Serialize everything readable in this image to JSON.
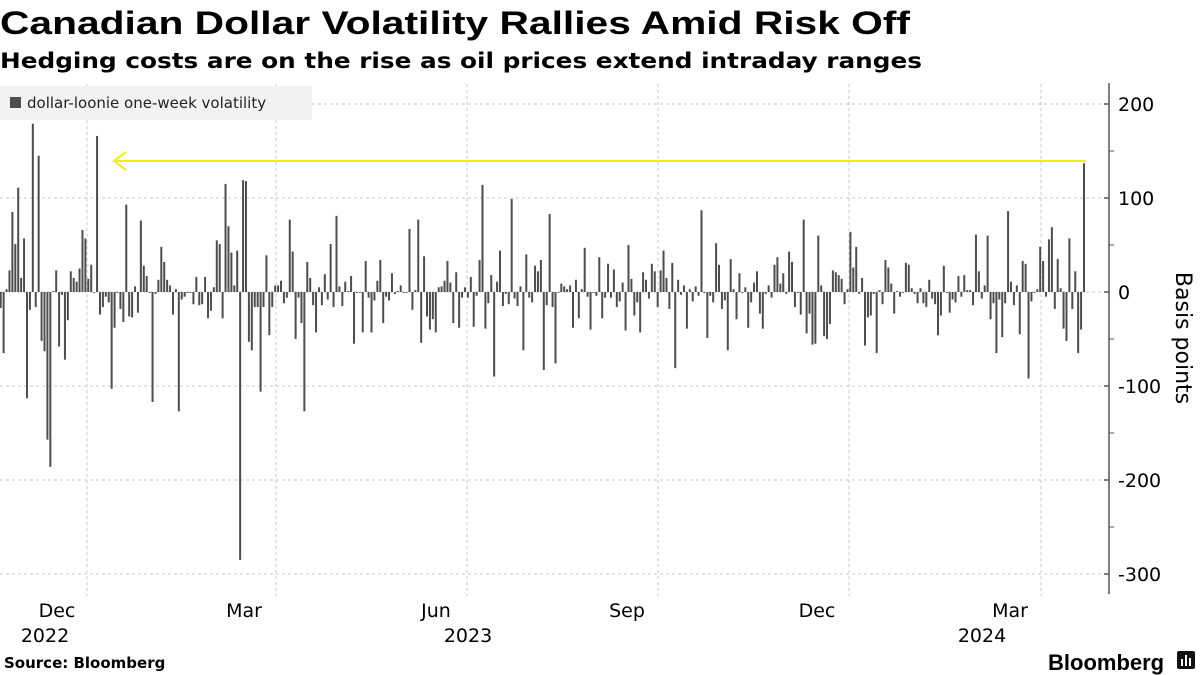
{
  "header": {
    "title": "Canadian Dollar Volatility Rallies Amid Risk Off",
    "subtitle": "Hedging costs are on the rise as oil prices extend intraday ranges"
  },
  "footer": {
    "source": "Source: Bloomberg",
    "logo_text": "Bloomberg",
    "logo_icon": "bloomberg-chart-icon"
  },
  "colors": {
    "bar": "#4d4d4d",
    "annotation_arrow": "#f0f000",
    "legend_bg": "#f2f2f2",
    "grid": "#c8c8c8"
  },
  "chart_data": {
    "type": "bar",
    "title": "Canadian Dollar Volatility Rallies Amid Risk Off",
    "subtitle": "Hedging costs are on the rise as oil prices extend intraday ranges",
    "xlabel": "",
    "ylabel": "Basis points",
    "ylim": [
      -300,
      200
    ],
    "yticks": [
      "200",
      "100",
      "0",
      "-100",
      "-200",
      "-300"
    ],
    "y_axis_side": "right",
    "grid": true,
    "legend_placement": "top-left",
    "x_tick_labels": [
      {
        "month": "Dec",
        "year": "2022"
      },
      {
        "month": "Mar",
        "year": ""
      },
      {
        "month": "Jun",
        "year": "2023"
      },
      {
        "month": "Sep",
        "year": ""
      },
      {
        "month": "Dec",
        "year": ""
      },
      {
        "month": "Mar",
        "year": "2024"
      }
    ],
    "annotation": "yellow arrow from latest value pointing back to comparable earlier level",
    "series": [
      {
        "name": "dollar-loonie one-week volatility",
        "values": [
          -17,
          -65,
          3,
          23,
          85,
          51,
          111,
          15,
          57,
          -113,
          -19,
          179,
          -16,
          145,
          -52,
          -63,
          -157,
          -186,
          1,
          23,
          -58,
          -3,
          -72,
          -30,
          22,
          15,
          11,
          25,
          66,
          57,
          14,
          29,
          0,
          166,
          -24,
          -16,
          -5,
          -11,
          -103,
          -38,
          -1,
          -18,
          -32,
          93,
          -26,
          -27,
          6,
          -22,
          76,
          28,
          17,
          -1,
          -117,
          -2,
          13,
          48,
          32,
          13,
          7,
          -24,
          3,
          -127,
          -8,
          -5,
          -1,
          -1,
          -13,
          16,
          -14,
          -13,
          16,
          -28,
          -20,
          5,
          55,
          51,
          -28,
          115,
          70,
          42,
          7,
          44,
          -285,
          119,
          118,
          -53,
          -62,
          -16,
          -16,
          -106,
          -16,
          39,
          -46,
          -16,
          7,
          7,
          12,
          -12,
          -6,
          77,
          43,
          -50,
          -6,
          -33,
          -127,
          32,
          15,
          -14,
          -43,
          5,
          -14,
          19,
          -8,
          51,
          -16,
          81,
          6,
          -15,
          11,
          1,
          17,
          -55,
          -1,
          0,
          -43,
          33,
          -6,
          -43,
          -9,
          12,
          34,
          -33,
          -5,
          -9,
          20,
          -2,
          1,
          7,
          -1,
          -1,
          67,
          -19,
          2,
          77,
          -54,
          38,
          -26,
          -40,
          -29,
          -43,
          5,
          6,
          12,
          33,
          10,
          -33,
          21,
          -38,
          -6,
          5,
          -6,
          16,
          -37,
          -4,
          34,
          114,
          -39,
          -12,
          18,
          -90,
          11,
          44,
          -15,
          -2,
          -13,
          99,
          -7,
          -15,
          6,
          -62,
          40,
          -6,
          -11,
          28,
          22,
          34,
          -83,
          -14,
          83,
          -16,
          -76,
          0,
          9,
          6,
          3,
          7,
          -38,
          13,
          -28,
          3,
          47,
          -5,
          -40,
          -1,
          -4,
          37,
          -28,
          -6,
          30,
          -6,
          24,
          -16,
          -10,
          10,
          -41,
          50,
          14,
          -25,
          -11,
          -43,
          21,
          13,
          -7,
          30,
          22,
          -16,
          23,
          44,
          15,
          -18,
          31,
          -81,
          13,
          -3,
          7,
          -39,
          3,
          -10,
          6,
          -4,
          87,
          -1,
          -49,
          -4,
          -11,
          52,
          29,
          -18,
          -9,
          -62,
          35,
          3,
          -29,
          20,
          -1,
          5,
          -38,
          -11,
          10,
          22,
          -23,
          -39,
          -2,
          7,
          -6,
          29,
          37,
          9,
          20,
          -2,
          43,
          32,
          -16,
          -1,
          -24,
          77,
          -44,
          -23,
          -56,
          -55,
          60,
          7,
          -47,
          -50,
          -34,
          23,
          21,
          18,
          14,
          -13,
          3,
          64,
          26,
          48,
          -2,
          15,
          -57,
          -27,
          -25,
          -2,
          -65,
          2,
          -13,
          34,
          26,
          9,
          -23,
          1,
          -5,
          0,
          31,
          29,
          4,
          -2,
          -12,
          4,
          -12,
          -16,
          13,
          -7,
          -13,
          -46,
          -25,
          28,
          -1,
          -22,
          -8,
          -11,
          17,
          -5,
          18,
          2,
          2,
          -14,
          61,
          22,
          -7,
          7,
          60,
          -29,
          -12,
          -65,
          -8,
          -48,
          -12,
          86,
          11,
          -14,
          7,
          -45,
          33,
          30,
          -92,
          -10,
          -1,
          3,
          48,
          33,
          -5,
          56,
          69,
          -18,
          35,
          4,
          -39,
          -52,
          57,
          -18,
          22,
          -65,
          -40,
          137
        ]
      }
    ]
  }
}
